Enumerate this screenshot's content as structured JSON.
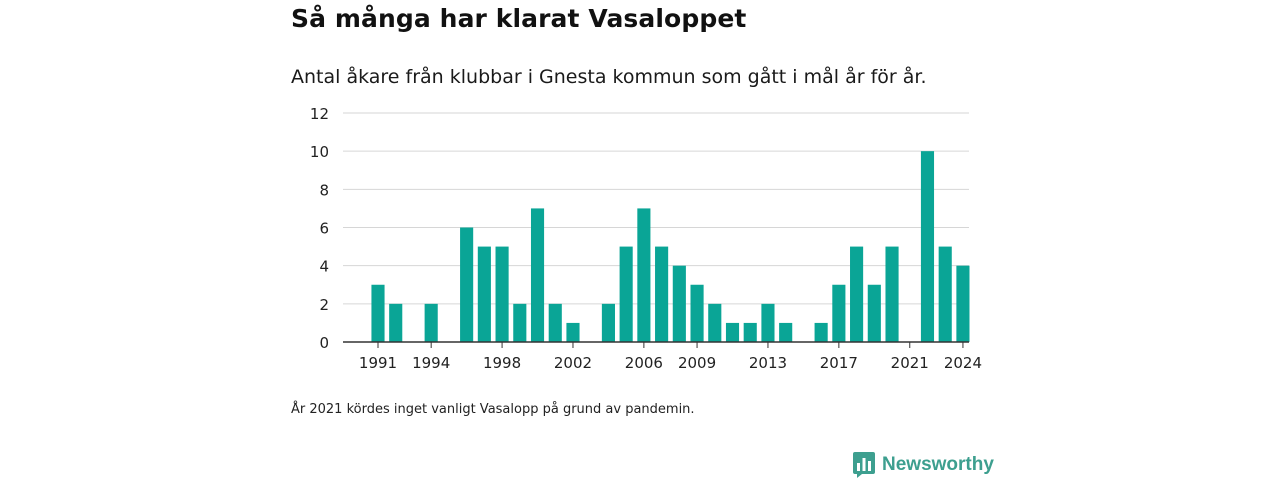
{
  "header": {
    "title": "Så många har klarat Vasaloppet",
    "subtitle": "Antal åkare från klubbar i Gnesta kommun som gått i mål år för år."
  },
  "footnote": "År 2021 kördes inget vanligt Vasalopp på grund av pandemin.",
  "brand": {
    "name": "Newsworthy",
    "icon": "newsworthy-logo-icon",
    "color": "#3d9f8f"
  },
  "chart_data": {
    "type": "bar",
    "title": "Så många har klarat Vasaloppet",
    "subtitle": "Antal åkare från klubbar i Gnesta kommun som gått i mål år för år.",
    "xlabel": "",
    "ylabel": "",
    "ylim": [
      0,
      12
    ],
    "yticks": [
      0,
      2,
      4,
      6,
      8,
      10,
      12
    ],
    "xticks": [
      1991,
      1994,
      1998,
      2002,
      2006,
      2009,
      2013,
      2017,
      2021,
      2024
    ],
    "grid": true,
    "legend": "none",
    "bar_color": "#0aa596",
    "categories": [
      1991,
      1992,
      1993,
      1994,
      1995,
      1996,
      1997,
      1998,
      1999,
      2000,
      2001,
      2002,
      2003,
      2004,
      2005,
      2006,
      2007,
      2008,
      2009,
      2010,
      2011,
      2012,
      2013,
      2014,
      2015,
      2016,
      2017,
      2018,
      2019,
      2020,
      2021,
      2022,
      2023,
      2024
    ],
    "values": [
      3,
      2,
      0,
      2,
      0,
      6,
      5,
      5,
      2,
      7,
      2,
      1,
      0,
      2,
      5,
      7,
      5,
      4,
      3,
      2,
      1,
      1,
      2,
      1,
      0,
      1,
      3,
      5,
      3,
      5,
      0,
      10,
      5,
      4
    ]
  }
}
